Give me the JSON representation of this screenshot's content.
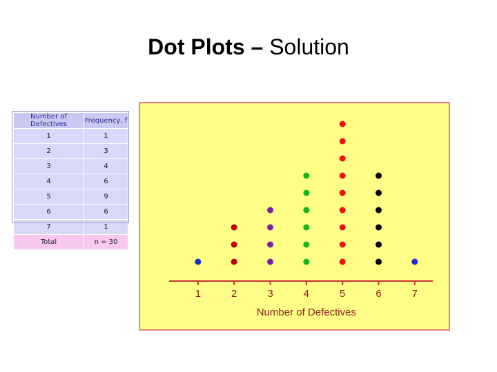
{
  "slide": {
    "title_bold": "Dot Plots",
    "title_dash": " – ",
    "title_rest": "Solution"
  },
  "table": {
    "headers": [
      "Number of Defectives",
      "Frequency, f"
    ],
    "rows": [
      [
        "1",
        "1"
      ],
      [
        "2",
        "3"
      ],
      [
        "3",
        "4"
      ],
      [
        "4",
        "6"
      ],
      [
        "5",
        "9"
      ],
      [
        "6",
        "6"
      ],
      [
        "7",
        "1"
      ]
    ],
    "total": [
      "Total",
      "n = 30"
    ]
  },
  "chart_data": {
    "type": "scatter",
    "subtype": "dot-plot",
    "title": "",
    "xlabel": "Number of Defectives",
    "ylabel": "",
    "x": [
      1,
      2,
      3,
      4,
      5,
      6,
      7
    ],
    "counts": [
      1,
      3,
      4,
      6,
      9,
      6,
      1
    ],
    "xlim": [
      0.2,
      7.5
    ],
    "grid": false,
    "colors": [
      "#1a2fcc",
      "#b80000",
      "#7a1fa8",
      "#11b81a",
      "#ee1111",
      "#000000",
      "#1a2fcc"
    ],
    "axis_color": "#cc3333",
    "label_color": "#8a1a1a",
    "background": "#ffff88"
  }
}
